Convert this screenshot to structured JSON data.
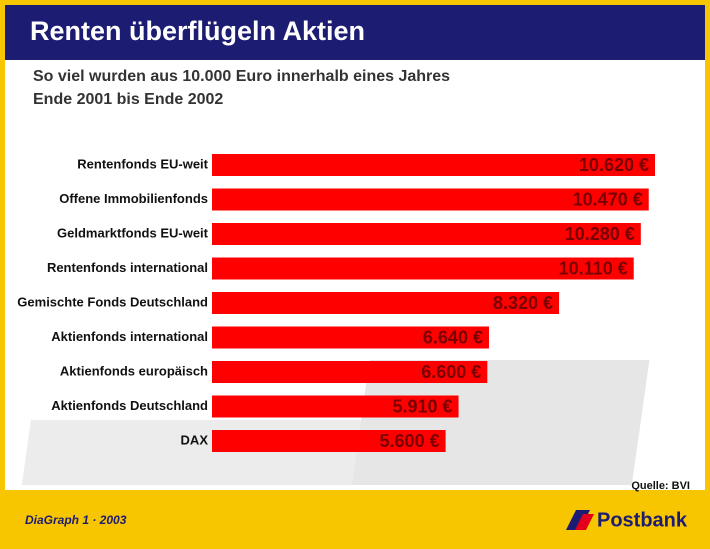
{
  "chart_data": {
    "type": "bar",
    "orientation": "horizontal",
    "title": "Renten überflügeln Aktien",
    "subtitle": [
      "So viel wurden aus 10.000 Euro innerhalb eines Jahres",
      "Ende 2001 bis Ende 2002"
    ],
    "categories": [
      "Rentenfonds EU-weit",
      "Offene Immobilienfonds",
      "Geldmarktfonds EU-weit",
      "Rentenfonds international",
      "Gemischte Fonds Deutschland",
      "Aktienfonds international",
      "Aktienfonds europäisch",
      "Aktienfonds Deutschland",
      "DAX"
    ],
    "values": [
      10620,
      10470,
      10280,
      10110,
      8320,
      6640,
      6600,
      5910,
      5600
    ],
    "value_labels": [
      "10.620 €",
      "10.470 €",
      "10.280 €",
      "10.110 €",
      "8.320 €",
      "6.640 €",
      "6.600 €",
      "5.910 €",
      "5.600 €"
    ],
    "color": "#ff0000",
    "source": "Quelle: BVI",
    "footer": "DiaGraph 1 · 2003",
    "brand": "Postbank"
  }
}
